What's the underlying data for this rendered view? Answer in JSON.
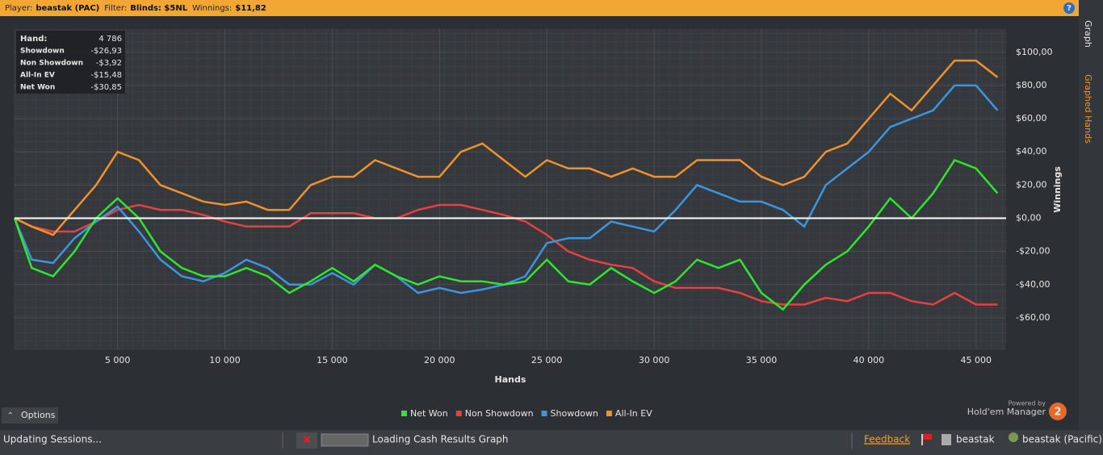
{
  "header": {
    "items": [
      {
        "label": "Player:",
        "value": "beastak (PAC)"
      },
      {
        "label": "Filter:",
        "value": "Blinds: $5NL"
      },
      {
        "label": "Winnings:",
        "value": "$11,82"
      }
    ],
    "help": "?"
  },
  "stats": {
    "rows": [
      [
        "Hand:",
        "4 786"
      ],
      [
        "Showdown",
        "-$26,93"
      ],
      [
        "Non Showdown",
        "-$3,92"
      ],
      [
        "All-In EV",
        "-$15,48"
      ],
      [
        "Net Won",
        "-$30,85"
      ]
    ]
  },
  "tabs": [
    "Graph",
    "Graphed Hands"
  ],
  "options": "Options",
  "powered": {
    "small": "Powered by",
    "name": "Hold'em Manager",
    "badge": "2"
  },
  "status": {
    "left": "Updating Sessions...",
    "task": "Loading Cash Results Graph",
    "feedback": "Feedback",
    "user": "beastak",
    "site": "beastak (Pacific)"
  },
  "chart_data": {
    "type": "line",
    "x_label": "Hands",
    "y_label": "Winnings",
    "x": [
      200,
      1000,
      2000,
      3000,
      4000,
      5000,
      6000,
      7000,
      8000,
      9000,
      10000,
      11000,
      12000,
      13000,
      14000,
      15000,
      16000,
      17000,
      18000,
      19000,
      20000,
      21000,
      22000,
      23000,
      24000,
      25000,
      26000,
      27000,
      28000,
      29000,
      30000,
      31000,
      32000,
      33000,
      34000,
      35000,
      36000,
      37000,
      38000,
      39000,
      40000,
      41000,
      42000,
      43000,
      44000,
      45000,
      46000
    ],
    "series": [
      {
        "name": "Net Won",
        "color": "#2ee62e",
        "values": [
          0,
          -30,
          -35,
          -20,
          0,
          12,
          0,
          -20,
          -30,
          -35,
          -35,
          -30,
          -35,
          -45,
          -38,
          -30,
          -38,
          -28,
          -35,
          -40,
          -35,
          -38,
          -38,
          -40,
          -38,
          -25,
          -38,
          -40,
          -30,
          -38,
          -45,
          -38,
          -25,
          -30,
          -25,
          -45,
          -55,
          -40,
          -28,
          -20,
          -5,
          12,
          0,
          15,
          35,
          30,
          15
        ]
      },
      {
        "name": "Non Showdown",
        "color": "#e84040",
        "values": [
          0,
          -5,
          -8,
          -8,
          -2,
          5,
          8,
          5,
          5,
          2,
          -2,
          -5,
          -5,
          -5,
          3,
          3,
          3,
          0,
          0,
          5,
          8,
          8,
          5,
          2,
          -2,
          -10,
          -20,
          -25,
          -28,
          -30,
          -38,
          -42,
          -42,
          -42,
          -45,
          -50,
          -52,
          -52,
          -48,
          -50,
          -45,
          -45,
          -50,
          -52,
          -45,
          -52,
          -52
        ]
      },
      {
        "name": "Showdown",
        "color": "#3a96e0",
        "values": [
          0,
          -25,
          -27,
          -12,
          -2,
          7,
          -8,
          -25,
          -35,
          -38,
          -33,
          -25,
          -30,
          -40,
          -40,
          -33,
          -40,
          -28,
          -35,
          -45,
          -42,
          -45,
          -43,
          -40,
          -35,
          -15,
          -12,
          -12,
          -2,
          -5,
          -8,
          5,
          20,
          15,
          10,
          10,
          5,
          -5,
          20,
          30,
          40,
          55,
          60,
          65,
          80,
          80,
          65
        ]
      },
      {
        "name": "All-In EV",
        "color": "#f0922c",
        "values": [
          0,
          -5,
          -10,
          5,
          20,
          40,
          35,
          20,
          15,
          10,
          8,
          10,
          5,
          5,
          20,
          25,
          25,
          35,
          30,
          25,
          25,
          40,
          45,
          35,
          25,
          35,
          30,
          30,
          25,
          30,
          25,
          25,
          35,
          35,
          35,
          25,
          20,
          25,
          40,
          45,
          60,
          75,
          65,
          80,
          95,
          95,
          85
        ]
      }
    ],
    "xlim": [
      200,
      46400
    ],
    "ylim": [
      -79,
      114
    ],
    "xticks": [
      {
        "value": 5000,
        "label": "5 000"
      },
      {
        "value": 10000,
        "label": "10 000"
      },
      {
        "value": 15000,
        "label": "15 000"
      },
      {
        "value": 20000,
        "label": "20 000"
      },
      {
        "value": 25000,
        "label": "25 000"
      },
      {
        "value": 30000,
        "label": "30 000"
      },
      {
        "value": 35000,
        "label": "35 000"
      },
      {
        "value": 40000,
        "label": "40 000"
      },
      {
        "value": 45000,
        "label": "45 000"
      }
    ],
    "yticks": [
      {
        "value": -60,
        "label": "-$60,00"
      },
      {
        "value": -40,
        "label": "-$40,00"
      },
      {
        "value": -20,
        "label": "-$20,00"
      },
      {
        "value": 0,
        "label": "$0,00"
      },
      {
        "value": 20,
        "label": "$20,00"
      },
      {
        "value": 40,
        "label": "$40,00"
      },
      {
        "value": 60,
        "label": "$60,00"
      },
      {
        "value": 80,
        "label": "$80,00"
      },
      {
        "value": 100,
        "label": "$100,00"
      }
    ],
    "grid": true,
    "zero_line": true
  }
}
